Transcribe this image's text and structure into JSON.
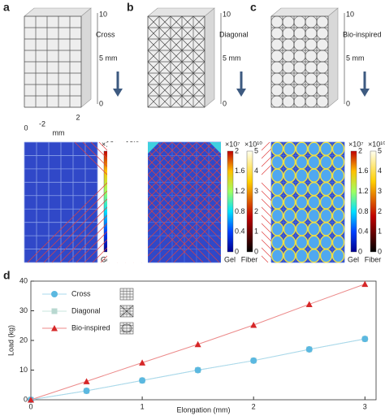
{
  "panels": [
    {
      "label": "a",
      "name": "Cross",
      "name_color": "#5bb8e0",
      "pattern": "cross"
    },
    {
      "label": "b",
      "name": "Diagonal",
      "name_color": "#7fc8c8",
      "pattern": "diagonal"
    },
    {
      "label": "c",
      "name": "Bio-inspired",
      "name_color": "#e0504a",
      "pattern": "bio"
    }
  ],
  "lattice_axis": {
    "z": [
      "10",
      "5 mm",
      "0"
    ],
    "base": [
      "0",
      "-2",
      "2"
    ],
    "base_unit": "mm"
  },
  "colorbars": {
    "gel": {
      "exponent": "×10⁷",
      "ticks": [
        "2",
        "1.6",
        "1.2",
        "0.8",
        "0.4",
        "0"
      ],
      "label": "Gel"
    },
    "fiber": {
      "exponent": "×10¹⁰",
      "ticks": [
        "5",
        "4",
        "3",
        "2",
        "1",
        "0"
      ],
      "label": "Fiber"
    }
  },
  "panel_d_label": "d",
  "chart_data": {
    "type": "line",
    "xlabel": "Elongation (mm)",
    "ylabel": "Load (kg)",
    "x": [
      0,
      0.5,
      1,
      1.5,
      2,
      2.5,
      3
    ],
    "series": [
      {
        "name": "Cross",
        "color": "#5bb8e0",
        "line_color": "#a8d8ec",
        "marker": "circle",
        "values": [
          0,
          3,
          6.5,
          10,
          13.2,
          17,
          20.5
        ]
      },
      {
        "name": "Diagonal",
        "color": "#b8d8d0",
        "line_color": "#c8e4dc",
        "marker": "square",
        "values": [
          0,
          3,
          6.5,
          10,
          13.2,
          17,
          20.5
        ]
      },
      {
        "name": "Bio-inspired",
        "color": "#d62728",
        "line_color": "#ec8a8a",
        "marker": "triangle",
        "values": [
          0,
          6.2,
          12.5,
          18.7,
          25.2,
          32.2,
          39
        ]
      }
    ],
    "xlim": [
      0,
      3.1
    ],
    "ylim": [
      0,
      40
    ],
    "xticks": [
      0,
      1,
      2,
      3
    ],
    "yticks": [
      0,
      10,
      20,
      30,
      40
    ]
  }
}
